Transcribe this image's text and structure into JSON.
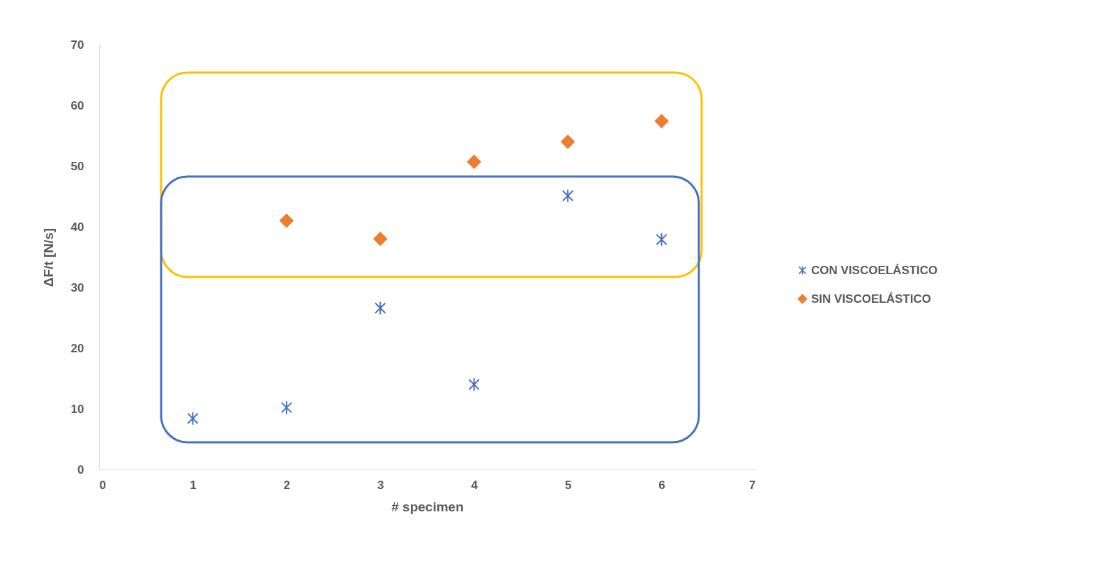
{
  "chart_data": {
    "type": "scatter",
    "xlabel": "# specimen",
    "ylabel": "ΔF/t  [N/s]",
    "x": [
      1,
      2,
      3,
      4,
      5,
      6
    ],
    "series": [
      {
        "name": "CON VISCOELÁSTICO",
        "color": "#4472c4",
        "marker": "cross",
        "values": [
          8.4,
          10.2,
          26.6,
          14.0,
          45.1,
          37.9
        ]
      },
      {
        "name": "SIN VISCOELÁSTICO",
        "color": "#ed7d31",
        "marker": "diamond",
        "values": [
          null,
          41.0,
          38.0,
          50.7,
          54.0,
          57.4
        ]
      }
    ],
    "xlim": [
      0,
      7
    ],
    "xticks": [
      0,
      1,
      2,
      3,
      4,
      5,
      6,
      7
    ],
    "ylim": [
      0,
      70
    ],
    "yticks": [
      0,
      10,
      20,
      30,
      40,
      50,
      60,
      70
    ],
    "grid": false,
    "legend": "right"
  }
}
